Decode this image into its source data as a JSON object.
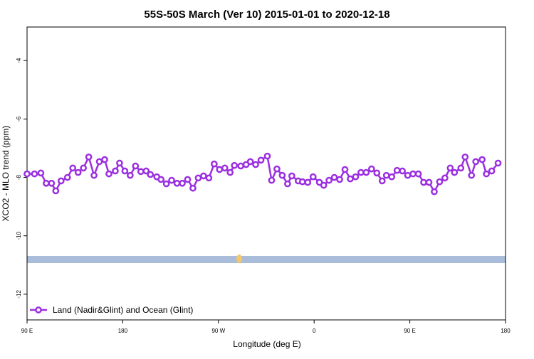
{
  "chart_data": {
    "type": "line",
    "title": "55S-50S March (Ver 10)   2015-01-01 to 2020-12-18",
    "x_label": "Longitude (deg E)",
    "y_label": "XCO2 - MLO trend (ppm)",
    "x": [
      90,
      97,
      103,
      108,
      113,
      117,
      122,
      128,
      133,
      138,
      143,
      148,
      153,
      158,
      163,
      167,
      173,
      177,
      182,
      187,
      192,
      197,
      202,
      206,
      212,
      216,
      221,
      226,
      231,
      236,
      241,
      246,
      251,
      256,
      261,
      266,
      271,
      276,
      281,
      285,
      291,
      296,
      300,
      305,
      310,
      316,
      320,
      325,
      330,
      335,
      339,
      345,
      349,
      354,
      359,
      365,
      369,
      374,
      379,
      384,
      389,
      394,
      399,
      404,
      409,
      414,
      419,
      424,
      428,
      433,
      438,
      443,
      448,
      453,
      458,
      463,
      468,
      473,
      478,
      483,
      488,
      492,
      498,
      502,
      508,
      512,
      518,
      522,
      527,
      533
    ],
    "series": [
      {
        "name": "Land (Nadir&Glint) and Ocean (Glint)",
        "color": "#9b30e0",
        "values": [
          -7.88,
          -7.88,
          -7.85,
          -8.2,
          -8.2,
          -8.46,
          -8.12,
          -8.0,
          -7.68,
          -7.83,
          -7.68,
          -7.3,
          -7.93,
          -7.46,
          -7.39,
          -7.88,
          -7.78,
          -7.51,
          -7.78,
          -7.93,
          -7.61,
          -7.8,
          -7.78,
          -7.9,
          -7.98,
          -8.07,
          -8.22,
          -8.1,
          -8.2,
          -8.2,
          -8.07,
          -8.37,
          -8.02,
          -7.95,
          -8.02,
          -7.54,
          -7.73,
          -7.68,
          -7.83,
          -7.59,
          -7.61,
          -7.56,
          -7.46,
          -7.56,
          -7.41,
          -7.27,
          -8.1,
          -7.71,
          -7.93,
          -8.22,
          -7.95,
          -8.12,
          -8.15,
          -8.17,
          -7.98,
          -8.17,
          -8.27,
          -8.1,
          -8.0,
          -8.07,
          -7.73,
          -8.05,
          -7.98,
          -7.83,
          -7.83,
          -7.71,
          -7.85,
          -8.12,
          -7.93,
          -7.98,
          -7.76,
          -7.78,
          -7.93,
          -7.88,
          -7.88,
          -8.17,
          -8.17,
          -8.49,
          -8.15,
          -8.02,
          -7.68,
          -7.83,
          -7.68,
          -7.3,
          -7.93,
          -7.46,
          -7.39,
          -7.88,
          -7.78,
          -7.51
        ]
      }
    ],
    "xlim": [
      90,
      540
    ],
    "xticks": [
      {
        "value": 90,
        "label": "90 E"
      },
      {
        "value": 180,
        "label": "180"
      },
      {
        "value": 270,
        "label": "90 W"
      },
      {
        "value": 360,
        "label": "0"
      },
      {
        "value": 450,
        "label": "90 E"
      },
      {
        "value": 540,
        "label": "180"
      }
    ],
    "ylim": [
      -12.88,
      -2.85
    ],
    "yticks": [
      -4,
      -6,
      -8,
      -10,
      -12
    ],
    "legend_position": "bottom-left"
  }
}
